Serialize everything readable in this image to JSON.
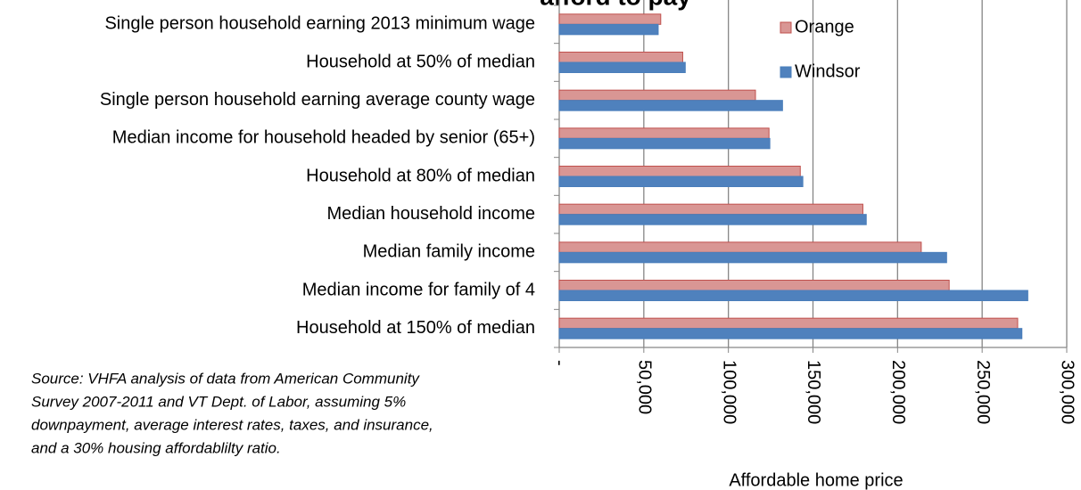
{
  "chart_data": {
    "type": "hbar",
    "title": "afford to pay",
    "x_label": "Affordable home price",
    "source": [
      "Source:  VHFA analysis of data from American Community",
      "Survey  2007-2011 and VT Dept. of Labor, assuming 5%",
      "downpayment, average interest rates, taxes, and insurance,",
      "and a 30% housing affordablilty ratio."
    ],
    "categories": [
      "Single person household earning 2013 minimum wage",
      "Household at 50% of median",
      "Single person household earning average county wage",
      "Median income for household headed by senior (65+)",
      "Household at 80% of median",
      "Median household income",
      "Median family income",
      "Median income for family of 4",
      "Household at 150% of median"
    ],
    "series": [
      {
        "name": "Orange",
        "color": "#d99694",
        "values": [
          60000,
          73000,
          116000,
          124000,
          142500,
          179500,
          214000,
          230500,
          271000
        ]
      },
      {
        "name": "Windsor",
        "color": "#4f81bd",
        "values": [
          58500,
          74500,
          132000,
          124500,
          144000,
          181500,
          229000,
          277000,
          273500
        ]
      }
    ],
    "xlim": [
      0,
      300000
    ],
    "xticks": [
      {
        "value": 0,
        "label": "-"
      },
      {
        "value": 50000,
        "label": "50,000"
      },
      {
        "value": 100000,
        "label": "100,000"
      },
      {
        "value": 150000,
        "label": "150,000"
      },
      {
        "value": 200000,
        "label": "200,000"
      },
      {
        "value": 250000,
        "label": "250,000"
      },
      {
        "value": 300000,
        "label": "300,000"
      }
    ],
    "grid": true
  }
}
